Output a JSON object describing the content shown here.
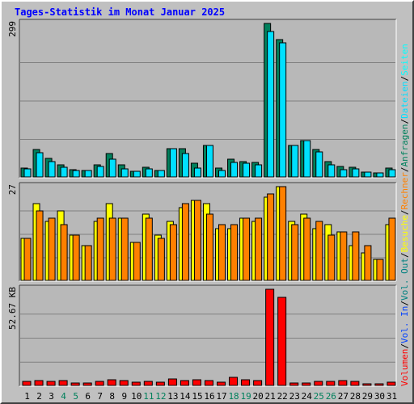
{
  "colors": {
    "background": "#c0c0c0",
    "plot": "#b8b8b8",
    "grid": "#808080",
    "title": "#0000ff",
    "hits": "#00805c",
    "files": "#00e0ff",
    "pages": "#00ffff",
    "visits": "#ffff00",
    "sites": "#ff8000",
    "kbytes": "#ff0000",
    "weekend_label": "#00805c",
    "day_label": "#000000"
  },
  "chart_data": [
    {
      "type": "bar",
      "title": "Tages-Statistik im Monat Januar 2025",
      "panel": "top",
      "y_max_label": "299",
      "y_max": 299,
      "categories": [
        "1",
        "2",
        "3",
        "4",
        "5",
        "6",
        "7",
        "8",
        "9",
        "10",
        "11",
        "12",
        "13",
        "14",
        "15",
        "16",
        "17",
        "18",
        "19",
        "20",
        "21",
        "22",
        "23",
        "24",
        "25",
        "26",
        "27",
        "28",
        "29",
        "30",
        "31"
      ],
      "weekend": [
        "4",
        "5",
        "11",
        "12",
        "18",
        "19",
        "25",
        "26"
      ],
      "legend": [
        "Anfragen",
        "Dateien",
        "Seiten"
      ],
      "series": [
        {
          "name": "Anfragen",
          "color": "#00805c",
          "values": [
            17,
            53,
            36,
            24,
            14,
            13,
            23,
            46,
            23,
            11,
            19,
            13,
            55,
            55,
            26,
            62,
            17,
            34,
            30,
            29,
            299,
            268,
            62,
            71,
            54,
            30,
            20,
            19,
            10,
            8,
            17
          ]
        },
        {
          "name": "Dateien",
          "color": "#00e0ff",
          "values": [
            16,
            47,
            30,
            19,
            13,
            13,
            20,
            35,
            16,
            11,
            15,
            13,
            55,
            46,
            18,
            62,
            13,
            28,
            26,
            23,
            283,
            261,
            61,
            71,
            49,
            23,
            14,
            15,
            9,
            8,
            14
          ]
        }
      ]
    },
    {
      "type": "bar",
      "panel": "middle",
      "y_max_label": "27",
      "y_max": 27,
      "categories": [
        "1",
        "2",
        "3",
        "4",
        "5",
        "6",
        "7",
        "8",
        "9",
        "10",
        "11",
        "12",
        "13",
        "14",
        "15",
        "16",
        "17",
        "18",
        "19",
        "20",
        "21",
        "22",
        "23",
        "24",
        "25",
        "26",
        "27",
        "28",
        "29",
        "30",
        "31"
      ],
      "legend": [
        "Besuche",
        "Rechner"
      ],
      "series": [
        {
          "name": "Besuche",
          "color": "#ffff00",
          "values": [
            12,
            22,
            17,
            20,
            13,
            10,
            17,
            22,
            18,
            11,
            19,
            13,
            17,
            21,
            23,
            22,
            15,
            15,
            18,
            17,
            24,
            27,
            17,
            19,
            15,
            16,
            14,
            10,
            8,
            6,
            16
          ]
        },
        {
          "name": "Rechner",
          "color": "#ff8000",
          "values": [
            12,
            20,
            18,
            16,
            13,
            10,
            18,
            18,
            18,
            11,
            18,
            12,
            16,
            22,
            23,
            19,
            16,
            16,
            18,
            18,
            25,
            27,
            16,
            18,
            17,
            13,
            14,
            14,
            10,
            6,
            18
          ]
        }
      ]
    },
    {
      "type": "bar",
      "panel": "bottom",
      "y_max_label": "52.67 KB",
      "y_max": 52.67,
      "y_unit": "KB",
      "categories": [
        "1",
        "2",
        "3",
        "4",
        "5",
        "6",
        "7",
        "8",
        "9",
        "10",
        "11",
        "12",
        "13",
        "14",
        "15",
        "16",
        "17",
        "18",
        "19",
        "20",
        "21",
        "22",
        "23",
        "24",
        "25",
        "26",
        "27",
        "28",
        "29",
        "30",
        "31"
      ],
      "legend": [
        "Volumen",
        "Vol. In",
        "Vol. Out"
      ],
      "series": [
        {
          "name": "Volumen",
          "color": "#ff0000",
          "values": [
            2.1,
            2.5,
            2.1,
            2.7,
            1.3,
            1.5,
            2.0,
            2.9,
            2.5,
            1.7,
            2.2,
            1.7,
            3.5,
            2.7,
            2.9,
            2.5,
            1.7,
            4.4,
            3.3,
            2.5,
            52.67,
            48.4,
            1.5,
            1.5,
            2.3,
            2.4,
            2.8,
            2.1,
            1.0,
            0.9,
            1.7
          ]
        }
      ]
    }
  ]
}
